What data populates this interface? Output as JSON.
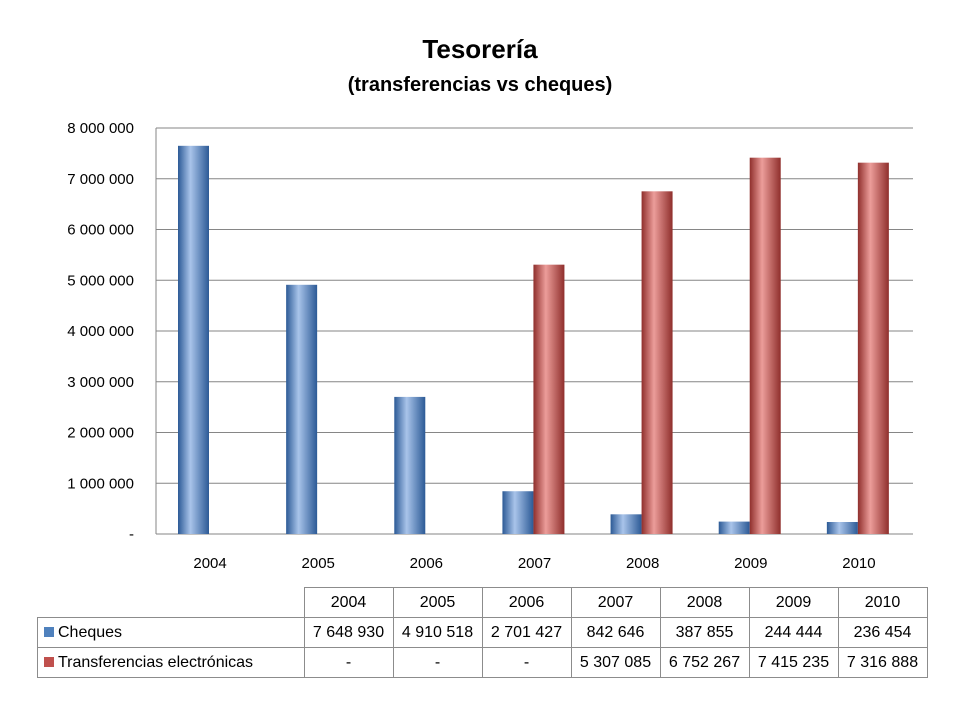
{
  "chart_data": {
    "type": "bar",
    "title": "Tesorería",
    "subtitle": "(transferencias vs cheques)",
    "categories": [
      "2004",
      "2005",
      "2006",
      "2007",
      "2008",
      "2009",
      "2010"
    ],
    "series": [
      {
        "name": "Cheques",
        "color": "#4f81bd",
        "values": [
          7648930,
          4910518,
          2701427,
          842646,
          387855,
          244444,
          236454
        ],
        "labels": [
          "7 648 930",
          "4 910 518",
          "2 701 427",
          "842 646",
          "387 855",
          "244 444",
          "236 454"
        ]
      },
      {
        "name": "Transferencias electrónicas",
        "color": "#c0504d",
        "values": [
          0,
          0,
          0,
          5307085,
          6752267,
          7415235,
          7316888
        ],
        "labels": [
          "-",
          "-",
          "-",
          "5 307 085",
          "6 752 267",
          "7 415 235",
          "7 316 888"
        ]
      }
    ],
    "ylim": [
      0,
      8000000
    ],
    "yticks": [
      0,
      1000000,
      2000000,
      3000000,
      4000000,
      5000000,
      6000000,
      7000000,
      8000000
    ],
    "ytick_labels": [
      "-",
      "1 000 000",
      "2 000 000",
      "3 000 000",
      "4 000 000",
      "5 000 000",
      "6 000 000",
      "7 000 000",
      "8 000 000"
    ],
    "grid": true,
    "legend": "data table below chart"
  }
}
